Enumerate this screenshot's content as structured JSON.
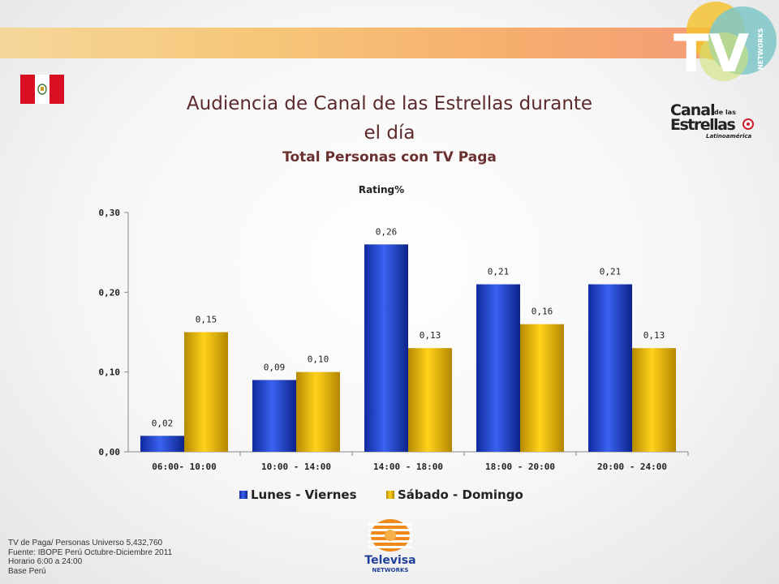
{
  "slide": {
    "title_line1": "Audiencia de Canal de las Estrellas durante",
    "title_line2": "el día",
    "subtitle": "Total Personas con TV Paga",
    "footnotes": [
      "TV de Paga/ Personas Universo 5,432,760",
      "Fuente: IBOPE Perú Octubre-Diciembre 2011",
      "Horario 6:00 a 24:00",
      "Base Perú"
    ]
  },
  "logos": {
    "tv_networks": {
      "big": "TV",
      "small": "NETWORKS"
    },
    "canal": {
      "line1": "Canal",
      "line1_small": "de las",
      "line2": "Estrellas",
      "line3": "Latinoamérica"
    },
    "televisa": {
      "line1": "Televisa",
      "line2": "NETWORKS"
    }
  },
  "colors": {
    "series_lunes": "#1f3fd0",
    "series_sabado": "#e8b800",
    "title": "#5b2a2a"
  },
  "chart_data": {
    "type": "bar",
    "title": "Rating%",
    "categories": [
      "06:00- 10:00",
      "10:00 - 14:00",
      "14:00 - 18:00",
      "18:00 - 20:00",
      "20:00 - 24:00"
    ],
    "series": [
      {
        "name": "Lunes - Viernes",
        "values": [
          0.02,
          0.09,
          0.26,
          0.21,
          0.21
        ],
        "labels": [
          "0,02",
          "0,09",
          "0,26",
          "0,21",
          "0,21"
        ]
      },
      {
        "name": "Sábado - Domingo",
        "values": [
          0.15,
          0.1,
          0.13,
          0.16,
          0.13
        ],
        "labels": [
          "0,15",
          "0,10",
          "0,13",
          "0,16",
          "0,13"
        ]
      }
    ],
    "ylim": [
      0,
      0.3
    ],
    "yticks": [
      0,
      0.1,
      0.2,
      0.3
    ],
    "ytick_labels": [
      "0,00",
      "0,10",
      "0,20",
      "0,30"
    ],
    "grid": false,
    "legend": "bottom-center"
  }
}
